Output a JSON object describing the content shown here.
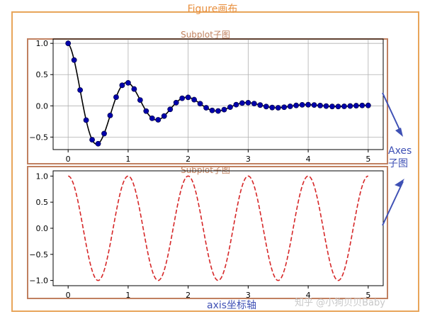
{
  "figure": {
    "label": "Figure画布"
  },
  "subplots": [
    {
      "label": "Subplot子图"
    },
    {
      "label": "Subplot子图"
    }
  ],
  "annotations": {
    "axes_line1": "Axes",
    "axes_line2": "子图",
    "axis": "axis坐标轴"
  },
  "watermark": "知乎 @小狗贝贝Baby",
  "colors": {
    "figure_border": "#e8a55a",
    "subplot_border": "#c08060",
    "annotation": "#3f51b5",
    "damped_line": "#000000",
    "damped_points": "#0000aa",
    "cosine_line": "#d62728"
  },
  "chart_data": [
    {
      "type": "line",
      "series": [
        {
          "kind": "line",
          "style": "solid",
          "x_range": [
            0,
            5
          ],
          "function": "cos(2*pi*t)*exp(-t)"
        },
        {
          "kind": "scatter",
          "marker": "circle",
          "x_step": 0.1,
          "x_range": [
            0,
            5
          ],
          "function": "cos(2*pi*t)*exp(-t)"
        }
      ],
      "xlim": [
        -0.25,
        5.25
      ],
      "ylim": [
        -0.7,
        1.07
      ],
      "xticks": [
        "0",
        "1",
        "2",
        "3",
        "4",
        "5"
      ],
      "yticks": [
        "1.0",
        "0.5",
        "0.0",
        "−0.5"
      ],
      "ytick_values": [
        1.0,
        0.5,
        0.0,
        -0.5
      ],
      "grid": true
    },
    {
      "type": "line",
      "series": [
        {
          "kind": "line",
          "style": "dashed",
          "x_range": [
            0,
            5
          ],
          "function": "cos(2*pi*t)"
        }
      ],
      "xlim": [
        -0.25,
        5.25
      ],
      "ylim": [
        -1.1,
        1.1
      ],
      "xticks": [
        "0",
        "1",
        "2",
        "3",
        "4",
        "5"
      ],
      "yticks": [
        "1.0",
        "0.5",
        "0.0",
        "−0.5",
        "−1.0"
      ],
      "ytick_values": [
        1.0,
        0.5,
        0.0,
        -0.5,
        -1.0
      ],
      "grid": false
    }
  ]
}
